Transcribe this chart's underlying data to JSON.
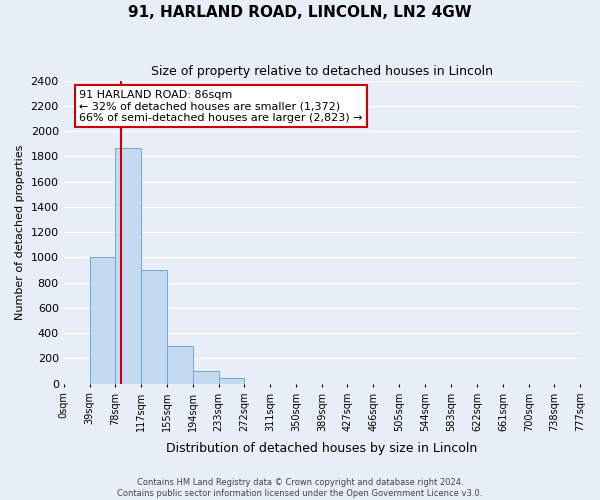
{
  "title": "91, HARLAND ROAD, LINCOLN, LN2 4GW",
  "subtitle": "Size of property relative to detached houses in Lincoln",
  "xlabel": "Distribution of detached houses by size in Lincoln",
  "ylabel": "Number of detached properties",
  "bar_values": [
    0,
    1000,
    1870,
    900,
    300,
    100,
    45,
    0,
    0,
    0,
    0,
    0,
    0,
    0,
    0,
    0,
    0,
    0,
    0,
    0
  ],
  "bin_edges": [
    0,
    39,
    78,
    117,
    155,
    194,
    233,
    272,
    311,
    350,
    389,
    427,
    466,
    505,
    544,
    583,
    622,
    661,
    700,
    738,
    777
  ],
  "tick_labels": [
    "0sqm",
    "39sqm",
    "78sqm",
    "117sqm",
    "155sqm",
    "194sqm",
    "233sqm",
    "272sqm",
    "311sqm",
    "350sqm",
    "389sqm",
    "427sqm",
    "466sqm",
    "505sqm",
    "544sqm",
    "583sqm",
    "622sqm",
    "661sqm",
    "700sqm",
    "738sqm",
    "777sqm"
  ],
  "bar_color": "#c5d9f0",
  "bar_edge_color": "#6aaad4",
  "property_line_x": 86,
  "property_line_color": "#cc0000",
  "ylim": [
    0,
    2400
  ],
  "yticks": [
    0,
    200,
    400,
    600,
    800,
    1000,
    1200,
    1400,
    1600,
    1800,
    2000,
    2200,
    2400
  ],
  "annotation_title": "91 HARLAND ROAD: 86sqm",
  "annotation_line1": "← 32% of detached houses are smaller (1,372)",
  "annotation_line2": "66% of semi-detached houses are larger (2,823) →",
  "annotation_box_color": "#ffffff",
  "annotation_box_edge": "#cc0000",
  "footer_line1": "Contains HM Land Registry data © Crown copyright and database right 2024.",
  "footer_line2": "Contains public sector information licensed under the Open Government Licence v3.0.",
  "background_color": "#e8eef7",
  "grid_color": "#ffffff"
}
